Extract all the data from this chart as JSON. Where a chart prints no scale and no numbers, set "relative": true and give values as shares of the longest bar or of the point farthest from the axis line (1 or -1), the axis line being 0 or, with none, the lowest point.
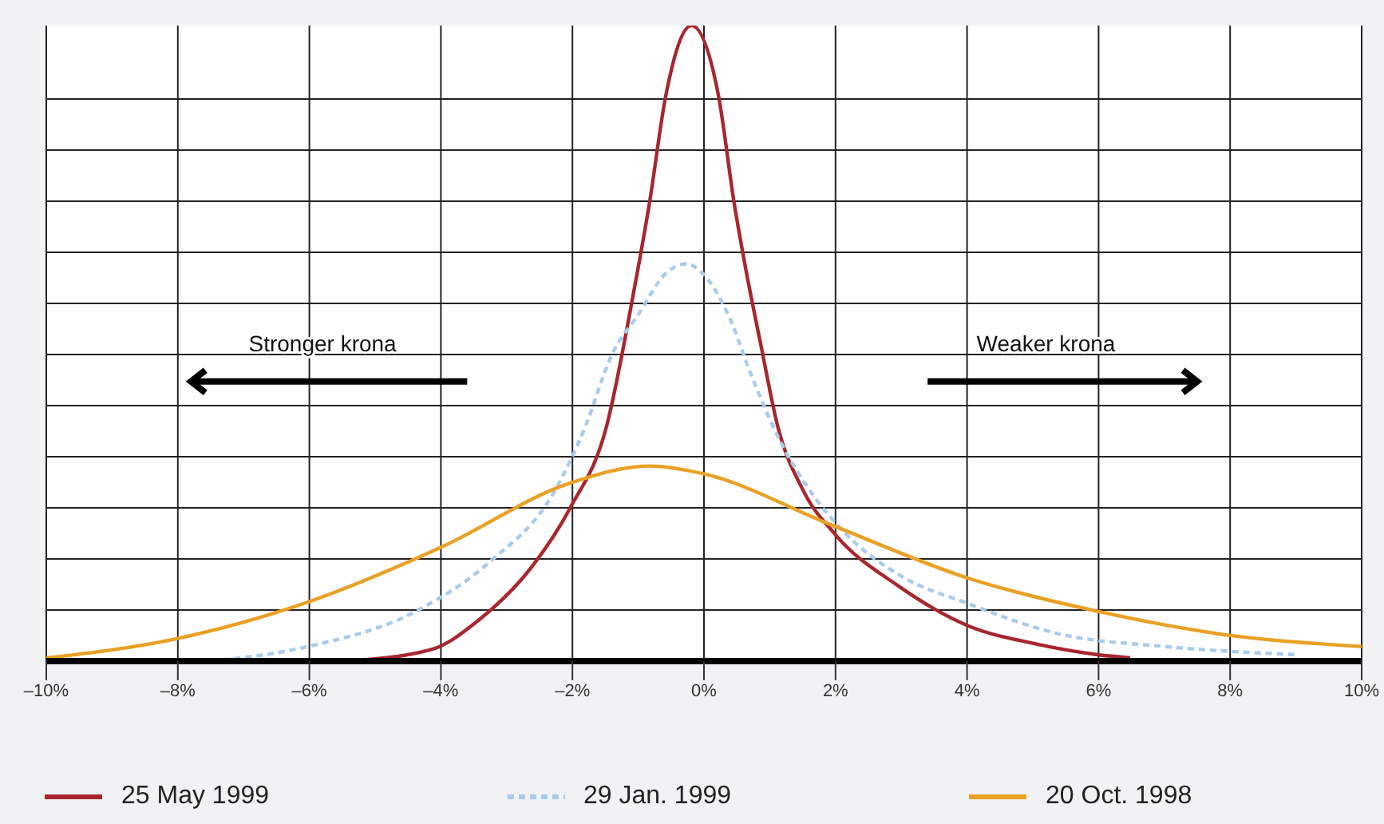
{
  "chart_data": {
    "type": "line",
    "relative": true,
    "grid": true,
    "legend": "bottom",
    "xlim": [
      -10,
      10
    ],
    "xticks": [
      {
        "value": -10,
        "label": "–10%"
      },
      {
        "value": -8,
        "label": "–8%"
      },
      {
        "value": -6,
        "label": "–6%"
      },
      {
        "value": -4,
        "label": "–4%"
      },
      {
        "value": -2,
        "label": "–2%"
      },
      {
        "value": 0,
        "label": "0%"
      },
      {
        "value": 2,
        "label": "2%"
      },
      {
        "value": 4,
        "label": "4%"
      },
      {
        "value": 6,
        "label": "6%"
      },
      {
        "value": 8,
        "label": "8%"
      },
      {
        "value": 10,
        "label": "10%"
      }
    ],
    "annotations": [
      "Stronger krona",
      "Weaker krona"
    ],
    "series": [
      {
        "name": "25 May 1999",
        "color": "#a8262e",
        "line_style": "solid",
        "x": [
          -5.44,
          -4.15,
          -3.42,
          -2.62,
          -2.04,
          -1.48,
          -1.07,
          -0.83,
          -0.58,
          -0.19,
          0.22,
          0.46,
          0.63,
          0.87,
          1.12,
          1.5,
          1.99,
          2.96,
          4.03,
          5.0,
          5.99,
          6.48
        ],
        "values": [
          0,
          0.018,
          0.065,
          0.148,
          0.24,
          0.37,
          0.58,
          0.72,
          0.89,
          1,
          0.89,
          0.72,
          0.62,
          0.495,
          0.37,
          0.27,
          0.2,
          0.118,
          0.055,
          0.028,
          0.01,
          0.005
        ]
      },
      {
        "name": "29 Jan. 1999",
        "color": "#a9cbec",
        "line_style": "dashed",
        "x": [
          -7.48,
          -6.02,
          -4.39,
          -3.26,
          -2.28,
          -1.8,
          -1.41,
          -1.0,
          -0.58,
          -0.27,
          -0.02,
          0.39,
          0.7,
          1.12,
          1.6,
          2.16,
          2.96,
          4.03,
          5.39,
          7.01,
          9.03
        ],
        "values": [
          0,
          0.023,
          0.078,
          0.156,
          0.266,
          0.37,
          0.48,
          0.545,
          0.61,
          0.625,
          0.61,
          0.54,
          0.455,
          0.354,
          0.27,
          0.2,
          0.136,
          0.09,
          0.043,
          0.023,
          0.01
        ]
      },
      {
        "name": "20 Oct. 1998",
        "color": "#e9a024",
        "line_style": "solid",
        "x": [
          -10,
          -8.03,
          -6.02,
          -3.98,
          -2.04,
          -0.83,
          -0.02,
          1.92,
          4.03,
          6.0,
          8.03,
          10
        ],
        "values": [
          0.005,
          0.035,
          0.093,
          0.18,
          0.28,
          0.307,
          0.295,
          0.215,
          0.13,
          0.078,
          0.04,
          0.023
        ]
      }
    ]
  }
}
